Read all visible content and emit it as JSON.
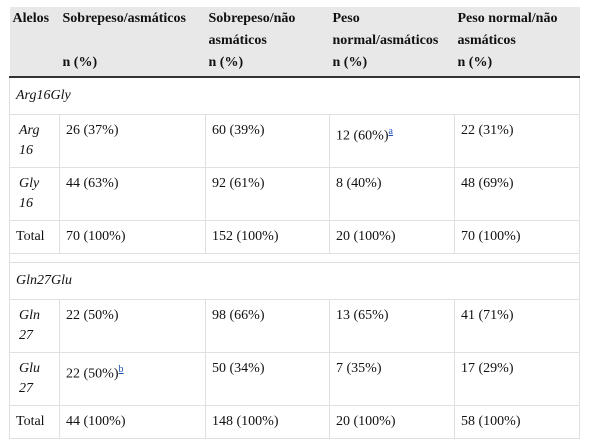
{
  "header": {
    "col1": "Alelos",
    "col2": "Sobrepeso/asmáticos",
    "col3": "Sobrepeso/não asmáticos",
    "col4": "Peso normal/asmáticos",
    "col5": "Peso normal/não asmáticos",
    "unit": "n (%)"
  },
  "groups": [
    {
      "name": "Arg16Gly",
      "rows": [
        {
          "allele": "Arg 16",
          "c2": "26 (37%)",
          "c3": "60 (39%)",
          "c4": "12 (60%)",
          "c4_sup": "a",
          "c5": "22 (31%)"
        },
        {
          "allele": "Gly 16",
          "c2": "44 (63%)",
          "c3": "92 (61%)",
          "c4": "8 (40%)",
          "c5": "48 (69%)"
        },
        {
          "allele": "Total",
          "c2": "70 (100%)",
          "c3": "152 (100%)",
          "c4": "20 (100%)",
          "c5": "70 (100%)"
        }
      ]
    },
    {
      "name": "Gln27Glu",
      "rows": [
        {
          "allele": "Gln 27",
          "c2": "22 (50%)",
          "c3": "98 (66%)",
          "c4": "13 (65%)",
          "c5": "41 (71%)"
        },
        {
          "allele": "Glu 27",
          "c2": "22 (50%)",
          "c2_sup": "b",
          "c3": "50 (34%)",
          "c4": "7 (35%)",
          "c5": "17 (29%)"
        },
        {
          "allele": "Total",
          "c2": "44 (100%)",
          "c3": "148 (100%)",
          "c4": "20 (100%)",
          "c5": "58 (100%)"
        }
      ]
    }
  ]
}
